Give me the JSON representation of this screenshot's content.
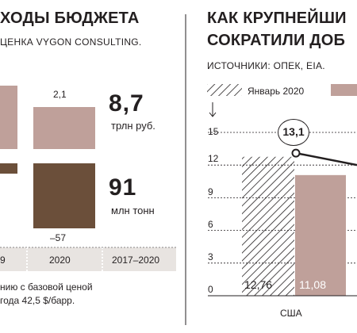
{
  "left_panel": {
    "title": "ХОДЫ БЮДЖЕТА",
    "subtitle": "ЦЕНКА VYGON CONSULTING.",
    "value_top": "2,1",
    "value_bottom": "–57",
    "total_big_1": "8,7",
    "total_unit_1": "трлн руб.",
    "total_big_2": "91",
    "total_unit_2": "млн тонн",
    "axis_cells": [
      "9",
      "2020",
      "2017–2020"
    ],
    "footnote_line1": "нию с базовой ценой",
    "footnote_line2": "года 42,5 $/барр.",
    "colors": {
      "pink": "#bfa09a",
      "brown": "#6b4f3a",
      "axis_bg": "#e8e4e1"
    }
  },
  "right_panel": {
    "title_line1": "КАК КРУПНЕЙШИ",
    "title_line2": "СОКРАТИЛИ ДОБ",
    "sources": "ИСТОЧНИКИ: ОПЕК, EIA.",
    "legend_hatched": "Январь 2020",
    "y_ticks": [
      "15",
      "12",
      "9",
      "6",
      "3",
      "0"
    ],
    "country": "США",
    "bar_labels": [
      "12,76",
      "11,08"
    ],
    "peak_label": "13,1",
    "colors": {
      "pink": "#bfa09a",
      "line": "#231f20"
    }
  },
  "chart_data": [
    {
      "type": "bar",
      "title": "ХОДЫ БЮДЖЕТА",
      "categories": [
        "9",
        "2020"
      ],
      "series": [
        {
          "values": [
            2.1,
            2.1
          ]
        },
        {
          "values": [
            -10,
            -57
          ]
        }
      ]
    },
    {
      "type": "bar",
      "title": "КАК КРУПНЕЙШИ СОКРАТИЛИ ДОБ",
      "categories": [
        "США"
      ],
      "series": [
        {
          "name": "Январь 2020",
          "values": [
            12.76
          ]
        },
        {
          "values": [
            11.08
          ]
        }
      ],
      "line": {
        "values": [
          13.1
        ]
      },
      "ylim": [
        0,
        15
      ],
      "yticks": [
        0,
        3,
        6,
        9,
        12,
        15
      ]
    }
  ]
}
